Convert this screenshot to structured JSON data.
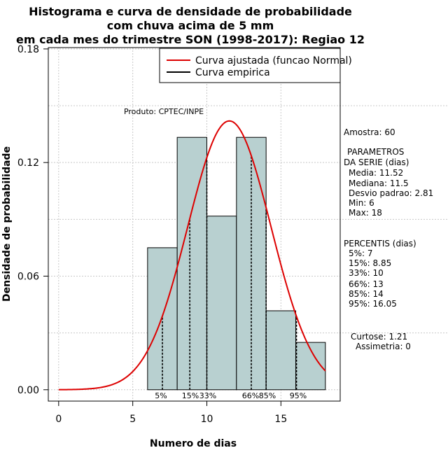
{
  "chart_data": {
    "type": "histogram",
    "title_lines": [
      "Histograma e curva de densidade de probabilidade",
      "com chuva acima de 5 mm",
      "em cada mes do trimestre SON (1998-2017): Regiao 12"
    ],
    "xlabel": "Numero de dias",
    "ylabel": "Densidade de probabilidade",
    "xlim": [
      -0.7,
      19.0
    ],
    "ylim": [
      -0.006,
      0.1807
    ],
    "x_ticks": [
      0,
      5,
      10,
      15
    ],
    "y_ticks": [
      0.0,
      0.06,
      0.12,
      0.18
    ],
    "y_tick_labels": [
      "0.00",
      "0.06",
      "0.12",
      "0.18"
    ],
    "grid": true,
    "bins": [
      {
        "x0": 6,
        "x1": 8,
        "density": 0.075
      },
      {
        "x0": 8,
        "x1": 10,
        "density": 0.1333
      },
      {
        "x0": 10,
        "x1": 12,
        "density": 0.0917
      },
      {
        "x0": 12,
        "x1": 14,
        "density": 0.1333
      },
      {
        "x0": 14,
        "x1": 16,
        "density": 0.0417
      },
      {
        "x0": 16,
        "x1": 18,
        "density": 0.025
      }
    ],
    "normal_fit": {
      "mean": 11.52,
      "sd": 2.81,
      "x_range": [
        0,
        18
      ],
      "color": "#dd0000"
    },
    "bar_fill": "#b8d0d0",
    "percentiles": [
      {
        "label": "5%",
        "x": 7
      },
      {
        "label": "15%",
        "x": 8.85
      },
      {
        "label": "33%",
        "x": 10
      },
      {
        "label": "66%",
        "x": 13
      },
      {
        "label": "85%",
        "x": 14
      },
      {
        "label": "95%",
        "x": 16.05
      }
    ],
    "legend": [
      {
        "label": "Curva ajustada (funcao Normal)",
        "color": "#dd0000"
      },
      {
        "label": "Curva empirica",
        "color": "#000000"
      }
    ],
    "annotation": "Produto: CPTEC/INPE",
    "stats_text": [
      "Amostra: 60",
      "PARAMETROS",
      "DA SERIE (dias)",
      "Media: 11.52",
      "Mediana: 11.5",
      "Desvio padrao: 2.81",
      "Min: 6",
      "Max: 18",
      "PERCENTIS (dias)",
      "5%: 7",
      "15%: 8.85",
      "33%: 10",
      "66%: 13",
      "85%: 14",
      "95%: 16.05",
      "Curtose: 1.21",
      "Assimetria: 0"
    ]
  }
}
